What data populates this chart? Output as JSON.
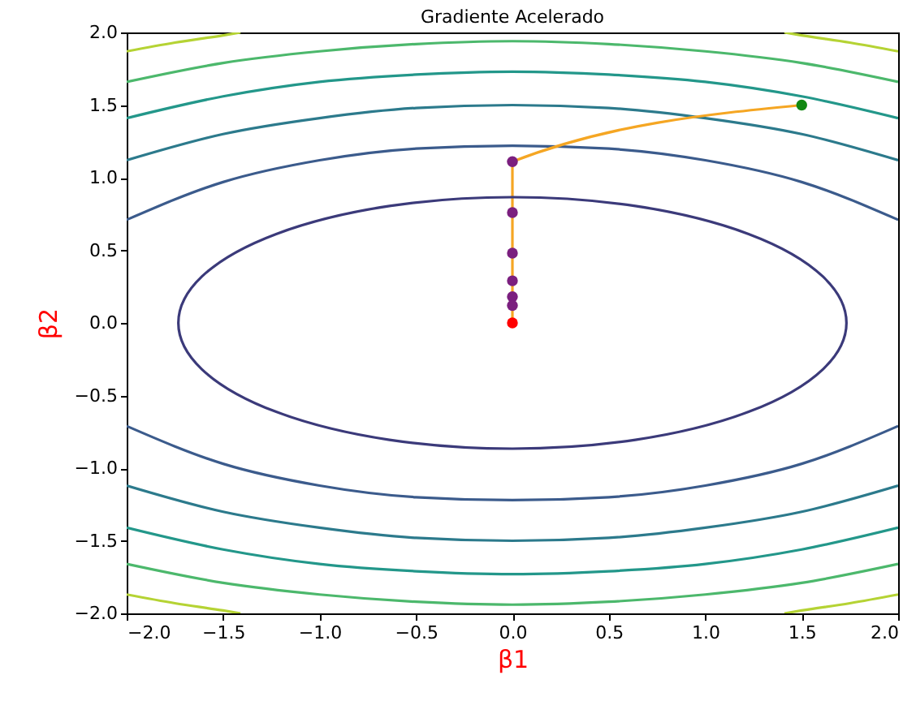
{
  "chart_data": {
    "type": "line",
    "title": "Gradiente Acelerado",
    "xlabel": "β1",
    "ylabel": "β2",
    "xlim": [
      -2,
      2
    ],
    "ylim": [
      -2,
      2
    ],
    "xticks": [
      {
        "value": -2,
        "label": "−2.0"
      },
      {
        "value": -1.5,
        "label": "−1.5"
      },
      {
        "value": -1,
        "label": "−1.0"
      },
      {
        "value": -0.5,
        "label": "−0.5"
      },
      {
        "value": 0,
        "label": "0.0"
      },
      {
        "value": 0.5,
        "label": "0.5"
      },
      {
        "value": 1,
        "label": "1.0"
      },
      {
        "value": 1.5,
        "label": "1.5"
      },
      {
        "value": 2,
        "label": "2.0"
      }
    ],
    "yticks": [
      {
        "value": -2,
        "label": "−2.0"
      },
      {
        "value": -1.5,
        "label": "−1.5"
      },
      {
        "value": -1,
        "label": "−1.0"
      },
      {
        "value": -0.5,
        "label": "−0.5"
      },
      {
        "value": 0,
        "label": "0.0"
      },
      {
        "value": 0.5,
        "label": "0.5"
      },
      {
        "value": 1,
        "label": "1.0"
      },
      {
        "value": 1.5,
        "label": "1.5"
      },
      {
        "value": 2,
        "label": "2.0"
      }
    ],
    "grid": false,
    "series": [
      {
        "type": "line",
        "color": "#3b5b8c",
        "x": [
          -2,
          -1.5,
          -1,
          -0.5,
          0,
          0.5,
          1,
          1.5,
          2
        ],
        "values": [
          0.71,
          0.97,
          1.12,
          1.2,
          1.22,
          1.2,
          1.12,
          0.97,
          0.71
        ]
      },
      {
        "type": "line",
        "color": "#3b5b8c",
        "x": [
          -2,
          -1.5,
          -1,
          -0.5,
          0,
          0.5,
          1,
          1.5,
          2
        ],
        "values": [
          -0.71,
          -0.97,
          -1.12,
          -1.2,
          -1.22,
          -1.2,
          -1.12,
          -0.97,
          -0.71
        ]
      },
      {
        "type": "line",
        "color": "#2c7a8c",
        "x": [
          -2,
          -1.5,
          -1,
          -0.5,
          0,
          0.5,
          1,
          1.5,
          2
        ],
        "values": [
          1.12,
          1.3,
          1.41,
          1.48,
          1.5,
          1.48,
          1.41,
          1.3,
          1.12
        ]
      },
      {
        "type": "line",
        "color": "#2c7a8c",
        "x": [
          -2,
          -1.5,
          -1,
          -0.5,
          0,
          0.5,
          1,
          1.5,
          2
        ],
        "values": [
          -1.12,
          -1.3,
          -1.41,
          -1.48,
          -1.5,
          -1.48,
          -1.41,
          -1.3,
          -1.12
        ]
      },
      {
        "type": "line",
        "color": "#23978a",
        "x": [
          -2,
          -1.5,
          -1,
          -0.5,
          0,
          0.5,
          1,
          1.5,
          2
        ],
        "values": [
          1.41,
          1.56,
          1.66,
          1.71,
          1.73,
          1.71,
          1.66,
          1.56,
          1.41
        ]
      },
      {
        "type": "line",
        "color": "#23978a",
        "x": [
          -2,
          -1.5,
          -1,
          -0.5,
          0,
          0.5,
          1,
          1.5,
          2
        ],
        "values": [
          -1.41,
          -1.56,
          -1.66,
          -1.71,
          -1.73,
          -1.71,
          -1.66,
          -1.56,
          -1.41
        ]
      },
      {
        "type": "line",
        "color": "#4cb86c",
        "x": [
          -2,
          -1.5,
          -1,
          -0.5,
          0,
          0.5,
          1,
          1.5,
          2
        ],
        "values": [
          1.66,
          1.79,
          1.87,
          1.92,
          1.94,
          1.92,
          1.87,
          1.79,
          1.66
        ]
      },
      {
        "type": "line",
        "color": "#4cb86c",
        "x": [
          -2,
          -1.5,
          -1,
          -0.5,
          0,
          0.5,
          1,
          1.5,
          2
        ],
        "values": [
          -1.66,
          -1.79,
          -1.87,
          -1.92,
          -1.94,
          -1.92,
          -1.87,
          -1.79,
          -1.66
        ]
      },
      {
        "type": "line",
        "color": "#b5d334",
        "x": [
          -2,
          -1.75,
          -1.5,
          -1.41
        ],
        "values": [
          1.87,
          1.93,
          1.98,
          2
        ]
      },
      {
        "type": "line",
        "color": "#b5d334",
        "x": [
          1.41,
          1.5,
          1.75,
          2
        ],
        "values": [
          2,
          1.98,
          1.93,
          1.87
        ]
      },
      {
        "type": "line",
        "color": "#b5d334",
        "x": [
          -2,
          -1.75,
          -1.5,
          -1.41
        ],
        "values": [
          -1.87,
          -1.93,
          -1.98,
          -2
        ]
      },
      {
        "type": "line",
        "color": "#b5d334",
        "x": [
          1.41,
          1.5,
          1.75,
          2
        ],
        "values": [
          -2,
          -1.98,
          -1.93,
          -1.87
        ]
      },
      {
        "marker": "none",
        "color": "#f5a623",
        "x": [
          1.5,
          0,
          0,
          0,
          0,
          0,
          0,
          0
        ],
        "values": [
          1.5,
          1.11,
          0.76,
          0.48,
          0.29,
          0.18,
          0.12,
          0
        ]
      },
      {
        "type": "scatter",
        "marker": "circle",
        "color": "#7b1f7f",
        "x": [
          0,
          0,
          0,
          0,
          0,
          0
        ],
        "values": [
          1.11,
          0.76,
          0.48,
          0.29,
          0.18,
          0.12
        ]
      },
      {
        "type": "scatter",
        "marker": "circle",
        "color": "#118811",
        "x": [
          1.5
        ],
        "values": [
          1.5
        ]
      },
      {
        "type": "scatter",
        "marker": "circle",
        "color": "#ff0000",
        "x": [
          0
        ],
        "values": [
          0
        ]
      }
    ]
  }
}
